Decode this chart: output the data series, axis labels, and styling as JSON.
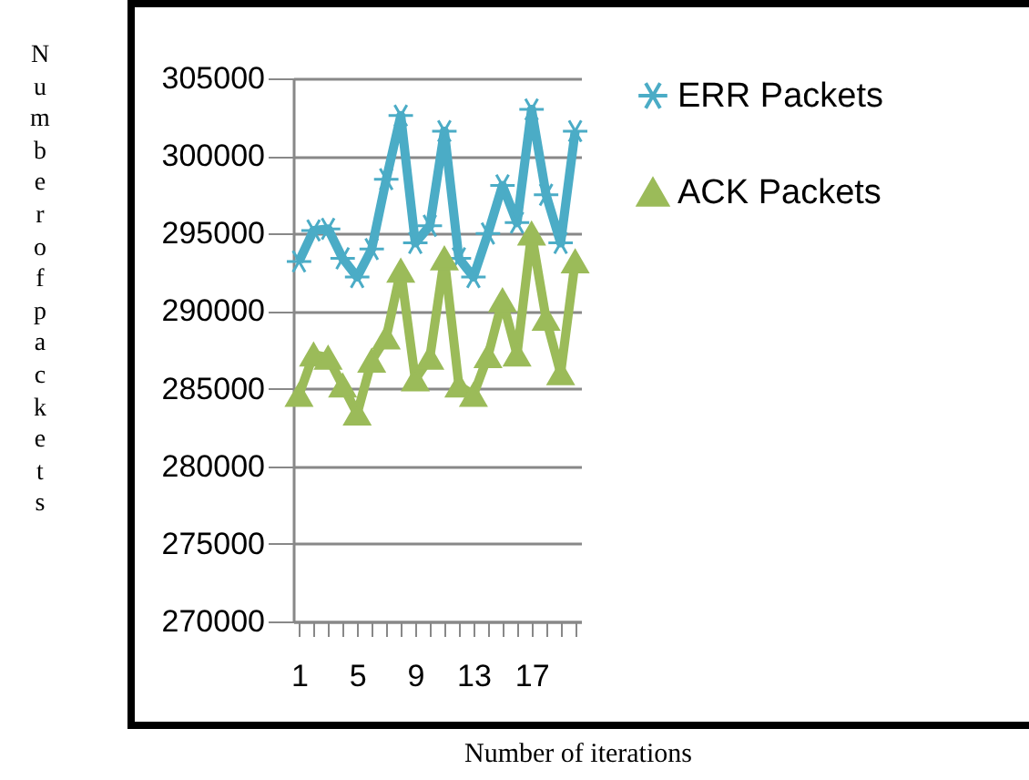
{
  "chart_data": {
    "type": "line",
    "xlabel": "Number of iterations",
    "ylabel": "Number of packets",
    "categories": [
      "1",
      null,
      null,
      null,
      "5",
      null,
      null,
      null,
      "9",
      null,
      null,
      null,
      "13",
      null,
      null,
      null,
      "17",
      null,
      null,
      null
    ],
    "series": [
      {
        "name": "ERR Packets",
        "color": "#4bacc6",
        "marker": "cross",
        "values": [
          293200,
          295200,
          295300,
          293400,
          292200,
          294000,
          298500,
          302600,
          294400,
          295500,
          301600,
          293400,
          292200,
          295000,
          298100,
          295700,
          303000,
          297500,
          294400,
          301600
        ]
      },
      {
        "name": "ACK Packets",
        "color": "#9bbb59",
        "marker": "triangle",
        "values": [
          284600,
          287200,
          287000,
          285200,
          283400,
          286800,
          288300,
          292600,
          285600,
          287000,
          293400,
          285200,
          284600,
          287100,
          290700,
          287200,
          295000,
          289500,
          286000,
          293200
        ]
      }
    ],
    "ylim": [
      270000,
      305000
    ],
    "yticks": [
      270000,
      275000,
      280000,
      285000,
      290000,
      295000,
      300000,
      305000
    ],
    "grid": "y",
    "legend": "right"
  }
}
